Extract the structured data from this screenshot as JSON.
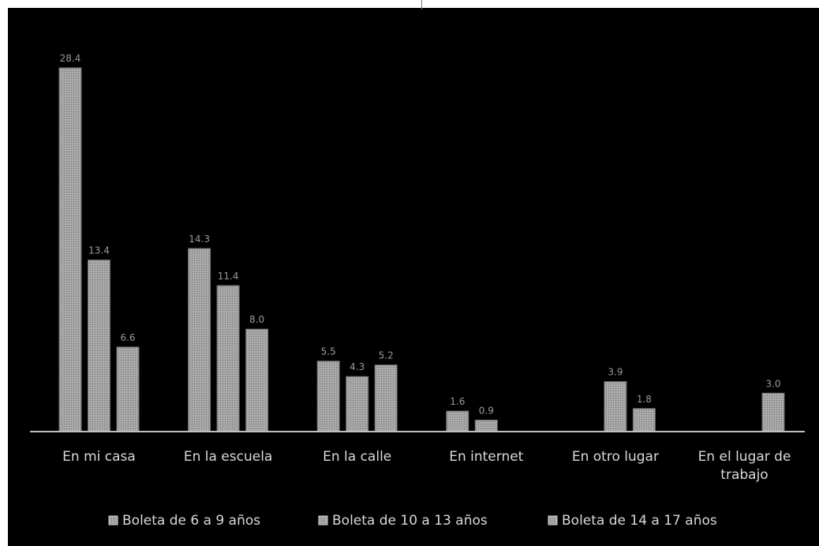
{
  "chart_data": {
    "type": "bar",
    "categories": [
      "En mi casa",
      "En la escuela",
      "En la calle",
      "En internet",
      "En otro lugar",
      "En el lugar de trabajo"
    ],
    "category_lines": [
      [
        "En mi casa"
      ],
      [
        "En la escuela"
      ],
      [
        "En la calle"
      ],
      [
        "En internet"
      ],
      [
        "En otro lugar"
      ],
      [
        "En el lugar de",
        "trabajo"
      ]
    ],
    "series": [
      {
        "name": "Boleta de 6 a 9 años",
        "values": [
          28.4,
          14.3,
          5.5,
          1.6,
          null,
          null
        ]
      },
      {
        "name": "Boleta de 10 a 13 años",
        "values": [
          13.4,
          11.4,
          4.3,
          0.9,
          3.9,
          null
        ]
      },
      {
        "name": "Boleta de 14 a 17 años",
        "values": [
          6.6,
          8.0,
          5.2,
          null,
          1.8,
          3.0
        ]
      }
    ],
    "ylim": [
      0,
      30
    ],
    "grid": false,
    "legend_position": "bottom",
    "colors": {
      "background": "#000000",
      "bar_fill": "#a9a9a9",
      "bar_stroke": "#6e6e6e",
      "text": "#d9d9d9",
      "axis": "#bfbfbf"
    }
  }
}
